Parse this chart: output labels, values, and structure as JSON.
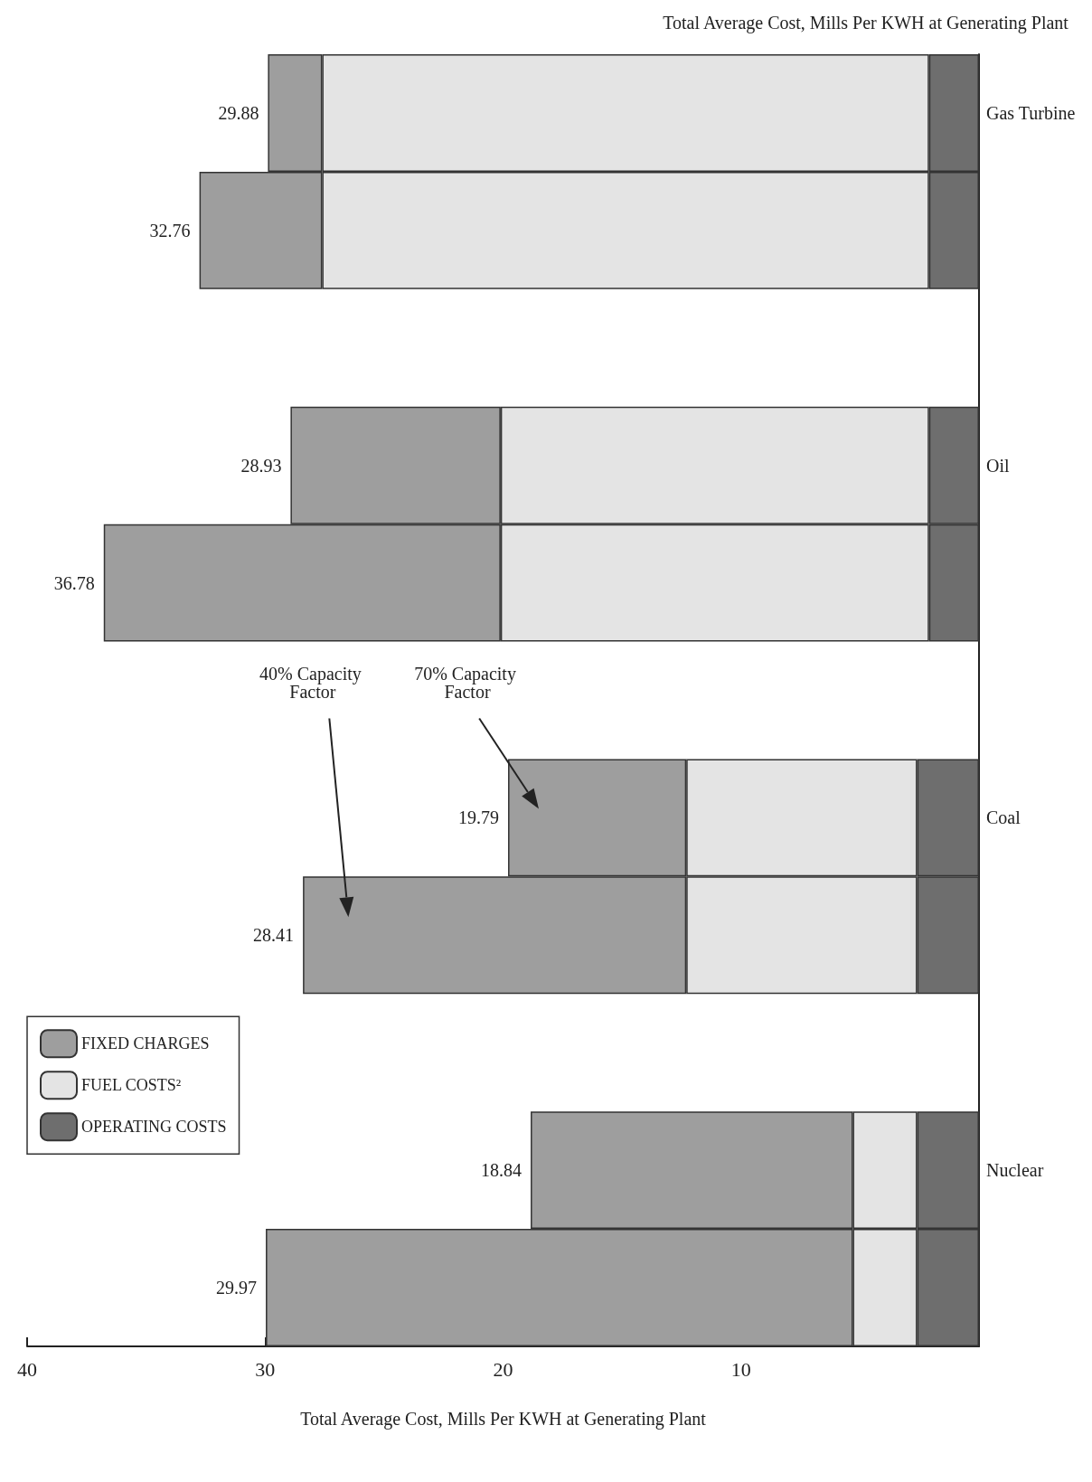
{
  "chart_data": {
    "type": "bar",
    "orientation": "horizontal",
    "stacked": true,
    "title": "Total Average Cost, Mills Per KWH at Generating Plant",
    "xlabel": "Total Average Cost, Mills Per KWH at Generating Plant",
    "categories": [
      "Gas Turbine",
      null,
      null,
      "Oil",
      null,
      null,
      "Coal",
      null,
      null,
      "Nuclear",
      null
    ],
    "series": [
      {
        "name": "OPERATING COSTS",
        "color": "#6e6e6e",
        "values": [
          2.1,
          2.1,
          null,
          2.1,
          2.1,
          null,
          2.6,
          2.6,
          null,
          2.6,
          2.6
        ]
      },
      {
        "name": "FUEL COSTS²",
        "color": "#e4e4e4",
        "values": [
          25.5,
          25.5,
          null,
          18.0,
          18.0,
          null,
          9.7,
          9.7,
          null,
          2.7,
          2.7
        ]
      },
      {
        "name": "FIXED CHARGES",
        "color": "#9e9e9e",
        "values": [
          2.28,
          5.16,
          null,
          8.83,
          16.68,
          null,
          7.49,
          16.11,
          null,
          13.54,
          24.67
        ]
      }
    ],
    "totals": [
      "29.88",
      "32.76",
      null,
      "28.93",
      "36.78",
      null,
      "19.79",
      "28.41",
      null,
      "18.84",
      "29.97"
    ],
    "xlim": [
      40,
      0
    ],
    "xticks": [
      10,
      20,
      30,
      40
    ],
    "annotations": [
      "40% Capacity Factor",
      "70% Capacity Factor"
    ],
    "legend": "bottom left",
    "grid": false
  }
}
